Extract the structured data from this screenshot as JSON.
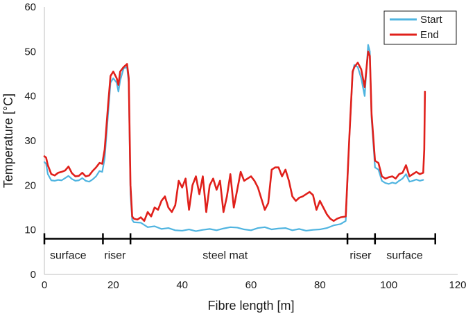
{
  "chart_data": {
    "type": "line",
    "xlabel": "Fibre length [m]",
    "ylabel": "Temperature [°C]",
    "xlim": [
      0,
      120
    ],
    "ylim": [
      0,
      60
    ],
    "x_ticks": [
      "0",
      "20",
      "40",
      "60",
      "80",
      "100",
      "120"
    ],
    "y_ticks": [
      "0",
      "10",
      "20",
      "30",
      "40",
      "50",
      "60"
    ],
    "grid": false,
    "legend_position": "top-right",
    "series": [
      {
        "name": "Start",
        "color": "#4FB4E0",
        "points": [
          [
            0,
            25.2
          ],
          [
            0.5,
            24.8
          ],
          [
            1,
            22.5
          ],
          [
            2,
            21.1
          ],
          [
            3,
            21.0
          ],
          [
            4,
            21.2
          ],
          [
            5,
            21.1
          ],
          [
            6,
            21.6
          ],
          [
            7,
            22.1
          ],
          [
            8,
            21.4
          ],
          [
            9,
            21.0
          ],
          [
            10,
            21.1
          ],
          [
            11,
            21.6
          ],
          [
            12,
            21.0
          ],
          [
            13,
            20.8
          ],
          [
            14,
            21.3
          ],
          [
            15,
            22.0
          ],
          [
            16,
            23.2
          ],
          [
            16.8,
            23.0
          ],
          [
            17.5,
            26
          ],
          [
            18.5,
            36
          ],
          [
            19.2,
            43.0
          ],
          [
            20,
            44.0
          ],
          [
            21,
            43.0
          ],
          [
            21.5,
            41.0
          ],
          [
            22,
            43.5
          ],
          [
            23,
            46.2
          ],
          [
            24,
            46.5
          ],
          [
            24.5,
            43
          ],
          [
            25,
            18
          ],
          [
            25.5,
            12.2
          ],
          [
            26,
            11.7
          ],
          [
            28,
            11.6
          ],
          [
            30,
            10.6
          ],
          [
            32,
            10.8
          ],
          [
            34,
            10.2
          ],
          [
            36,
            10.4
          ],
          [
            38,
            9.9
          ],
          [
            40,
            9.8
          ],
          [
            42,
            10.1
          ],
          [
            44,
            9.7
          ],
          [
            46,
            10.0
          ],
          [
            48,
            10.2
          ],
          [
            50,
            9.9
          ],
          [
            52,
            10.3
          ],
          [
            54,
            10.6
          ],
          [
            56,
            10.5
          ],
          [
            58,
            10.1
          ],
          [
            60,
            9.9
          ],
          [
            62,
            10.4
          ],
          [
            64,
            10.6
          ],
          [
            66,
            10.1
          ],
          [
            68,
            10.3
          ],
          [
            70,
            10.4
          ],
          [
            72,
            9.9
          ],
          [
            74,
            10.2
          ],
          [
            76,
            9.8
          ],
          [
            78,
            10.0
          ],
          [
            80,
            10.1
          ],
          [
            82,
            10.4
          ],
          [
            84,
            11.0
          ],
          [
            86,
            11.3
          ],
          [
            87.5,
            12.0
          ],
          [
            88.5,
            30
          ],
          [
            89.5,
            45.0
          ],
          [
            90,
            47.0
          ],
          [
            91,
            46.5
          ],
          [
            92,
            44.0
          ],
          [
            93,
            40.0
          ],
          [
            94,
            51.5
          ],
          [
            94.5,
            50
          ],
          [
            95,
            35
          ],
          [
            96,
            24.0
          ],
          [
            97,
            23.5
          ],
          [
            98,
            21.0
          ],
          [
            99,
            20.5
          ],
          [
            100,
            20.3
          ],
          [
            101,
            20.6
          ],
          [
            102,
            20.4
          ],
          [
            103,
            21.0
          ],
          [
            104,
            21.5
          ],
          [
            105,
            22.5
          ],
          [
            106,
            20.8
          ],
          [
            107,
            21.0
          ],
          [
            108,
            21.3
          ],
          [
            109,
            21.0
          ],
          [
            110,
            21.2
          ]
        ]
      },
      {
        "name": "End",
        "color": "#E0201B",
        "points": [
          [
            0,
            26.5
          ],
          [
            0.5,
            26.2
          ],
          [
            1,
            24.5
          ],
          [
            2,
            22.5
          ],
          [
            3,
            22.2
          ],
          [
            4,
            22.8
          ],
          [
            5,
            23.0
          ],
          [
            6,
            23.3
          ],
          [
            7,
            24.2
          ],
          [
            8,
            22.7
          ],
          [
            9,
            22.0
          ],
          [
            10,
            22.1
          ],
          [
            11,
            22.8
          ],
          [
            12,
            22.0
          ],
          [
            13,
            22.2
          ],
          [
            14,
            23.2
          ],
          [
            15,
            24.0
          ],
          [
            16,
            25.0
          ],
          [
            16.8,
            24.8
          ],
          [
            17.5,
            28
          ],
          [
            18.5,
            38
          ],
          [
            19.2,
            44.5
          ],
          [
            20,
            45.5
          ],
          [
            21,
            44.0
          ],
          [
            21.5,
            42.5
          ],
          [
            22,
            45.5
          ],
          [
            23,
            46.5
          ],
          [
            24,
            47.2
          ],
          [
            24.5,
            44
          ],
          [
            25,
            20
          ],
          [
            25.5,
            13.0
          ],
          [
            26,
            12.5
          ],
          [
            27,
            12.3
          ],
          [
            28,
            12.8
          ],
          [
            29,
            12.0
          ],
          [
            30,
            14.0
          ],
          [
            31,
            13.0
          ],
          [
            32,
            15.0
          ],
          [
            33,
            14.5
          ],
          [
            34,
            16.5
          ],
          [
            35,
            17.5
          ],
          [
            36,
            15.0
          ],
          [
            37,
            14.0
          ],
          [
            38,
            15.5
          ],
          [
            39,
            21.0
          ],
          [
            40,
            19.5
          ],
          [
            41,
            21.5
          ],
          [
            42,
            14.5
          ],
          [
            43,
            20.0
          ],
          [
            44,
            22.0
          ],
          [
            45,
            18.0
          ],
          [
            46,
            22.0
          ],
          [
            47,
            14.0
          ],
          [
            48,
            20.0
          ],
          [
            49,
            21.5
          ],
          [
            50,
            19.0
          ],
          [
            51,
            21.0
          ],
          [
            52,
            14.0
          ],
          [
            53,
            17.5
          ],
          [
            54,
            22.5
          ],
          [
            55,
            15.0
          ],
          [
            56,
            19.0
          ],
          [
            57,
            23.0
          ],
          [
            58,
            21.0
          ],
          [
            59,
            21.5
          ],
          [
            60,
            22.0
          ],
          [
            61,
            21.0
          ],
          [
            62,
            19.5
          ],
          [
            63,
            17.0
          ],
          [
            64,
            14.5
          ],
          [
            65,
            16.0
          ],
          [
            66,
            23.5
          ],
          [
            67,
            24.0
          ],
          [
            68,
            24.0
          ],
          [
            69,
            22.0
          ],
          [
            70,
            23.5
          ],
          [
            71,
            21.0
          ],
          [
            72,
            17.5
          ],
          [
            73,
            16.5
          ],
          [
            74,
            17.2
          ],
          [
            75,
            17.5
          ],
          [
            76,
            18.0
          ],
          [
            77,
            18.5
          ],
          [
            78,
            17.8
          ],
          [
            79,
            14.5
          ],
          [
            80,
            16.5
          ],
          [
            81,
            15.0
          ],
          [
            82,
            13.5
          ],
          [
            83,
            12.5
          ],
          [
            84,
            12.0
          ],
          [
            85,
            12.5
          ],
          [
            86,
            12.8
          ],
          [
            87.5,
            13.0
          ],
          [
            88.5,
            30
          ],
          [
            89.5,
            45.5
          ],
          [
            90,
            46.5
          ],
          [
            91,
            47.5
          ],
          [
            92,
            46.0
          ],
          [
            93,
            42.0
          ],
          [
            94,
            50.0
          ],
          [
            94.5,
            49
          ],
          [
            95,
            36
          ],
          [
            96,
            25.5
          ],
          [
            97,
            25.0
          ],
          [
            98,
            22.0
          ],
          [
            99,
            21.5
          ],
          [
            100,
            21.8
          ],
          [
            101,
            22.0
          ],
          [
            102,
            21.5
          ],
          [
            103,
            22.5
          ],
          [
            104,
            22.8
          ],
          [
            105,
            24.5
          ],
          [
            106,
            22.0
          ],
          [
            107,
            22.5
          ],
          [
            108,
            23.0
          ],
          [
            109,
            22.5
          ],
          [
            110,
            22.8
          ],
          [
            110.3,
            28
          ],
          [
            110.5,
            41.0
          ]
        ]
      }
    ],
    "zones": {
      "boundaries": [
        0,
        17,
        25,
        88,
        96,
        113.5
      ],
      "y": 8,
      "labels": [
        {
          "text": "surface",
          "x": 6.9
        },
        {
          "text": "riser",
          "x": 20.5
        },
        {
          "text": "steel mat",
          "x": 52.5
        },
        {
          "text": "riser",
          "x": 91.8
        },
        {
          "text": "surface",
          "x": 104.6
        }
      ]
    }
  }
}
